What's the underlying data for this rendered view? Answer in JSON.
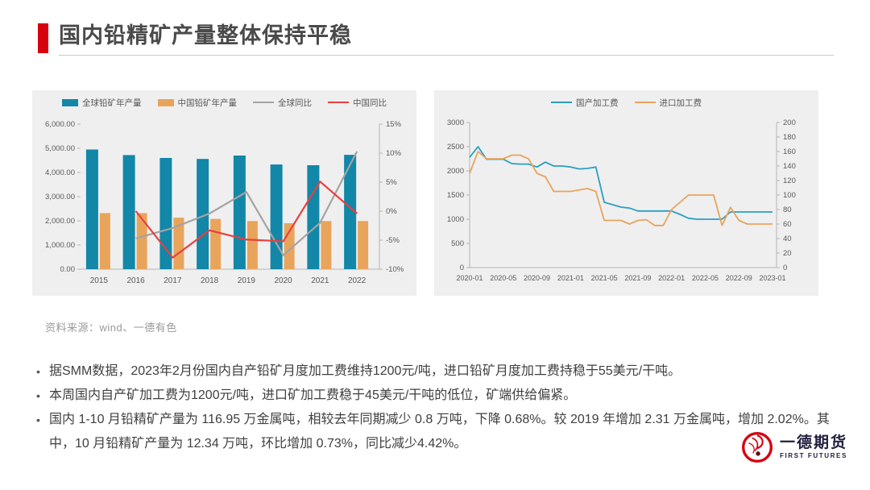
{
  "title": "国内铅精矿产量整体保持平稳",
  "source": "资料来源：wind、一德有色",
  "bullets": [
    "据SMM数据，2023年2月份国内自产铅矿月度加工费维持1200元/吨，进口铅矿月度加工费持稳于55美元/干吨。",
    "本周国内自产矿加工费为1200元/吨，进口矿加工费稳于45美元/干吨的低位，矿端供给偏紧。",
    "国内 1-10 月铅精矿产量为 116.95 万金属吨，相较去年同期减少 0.8 万吨，下降 0.68%。较 2019 年增加 2.31 万金属吨，增加 2.02%。其中，10 月铅精矿产量为 12.34 万吨，环比增加 0.73%，同比减少4.42%。"
  ],
  "logo": {
    "cn": "一德期货",
    "en": "FIRST FUTURES"
  },
  "colors": {
    "accent_red": "#d7000f",
    "panel_bg": "#efeff0",
    "axis_text": "#595959",
    "axis_line": "#b5b5b5"
  },
  "chart_data": [
    {
      "type": "bar",
      "title": "",
      "categories": [
        "2015",
        "2016",
        "2017",
        "2018",
        "2019",
        "2020",
        "2021",
        "2022"
      ],
      "series": [
        {
          "name": "全球铅矿年产量",
          "kind": "bar",
          "axis": "left",
          "color": "#1287a8",
          "values": [
            4950,
            4720,
            4600,
            4560,
            4700,
            4330,
            4300,
            4730
          ]
        },
        {
          "name": "中国铅矿年产量",
          "kind": "bar",
          "axis": "left",
          "color": "#e9a45b",
          "values": [
            2320,
            2320,
            2130,
            2080,
            1990,
            1900,
            1990,
            1990
          ]
        },
        {
          "name": "全球同比",
          "kind": "line",
          "axis": "right",
          "color": "#a3a3a3",
          "values": [
            null,
            -4.7,
            -2.9,
            -0.4,
            3.3,
            -7.6,
            -2.0,
            10.3
          ]
        },
        {
          "name": "中国同比",
          "kind": "line",
          "axis": "right",
          "color": "#e8403d",
          "values": [
            null,
            0.0,
            -8.0,
            -3.3,
            -4.9,
            -5.2,
            5.1,
            -0.4
          ]
        }
      ],
      "left_axis": {
        "min": 0,
        "max": 6000,
        "tick_values": [
          0,
          1000,
          2000,
          3000,
          4000,
          5000,
          6000
        ],
        "tick_labels": [
          "0.00",
          "1,000.00",
          "2,000.00",
          "3,000.00",
          "4,000.00",
          "5,000.00",
          "6,000.00"
        ]
      },
      "right_axis": {
        "min": -10,
        "max": 15,
        "tick_values": [
          -10,
          -5,
          0,
          5,
          10,
          15
        ],
        "tick_labels": [
          "-10%",
          "-5%",
          "0%",
          "5%",
          "10%",
          "15%"
        ]
      },
      "grid": "off",
      "legend_position": "top"
    },
    {
      "type": "line",
      "title": "",
      "x": [
        "2020-01",
        "2020-02",
        "2020-03",
        "2020-04",
        "2020-05",
        "2020-06",
        "2020-07",
        "2020-08",
        "2020-09",
        "2020-10",
        "2020-11",
        "2020-12",
        "2021-01",
        "2021-02",
        "2021-03",
        "2021-04",
        "2021-05",
        "2021-06",
        "2021-07",
        "2021-08",
        "2021-09",
        "2021-10",
        "2021-11",
        "2021-12",
        "2022-01",
        "2022-02",
        "2022-03",
        "2022-04",
        "2022-05",
        "2022-06",
        "2022-07",
        "2022-08",
        "2022-09",
        "2022-10",
        "2022-11",
        "2022-12",
        "2023-01"
      ],
      "x_tick_labels": [
        "2020-01",
        "2020-05",
        "2020-09",
        "2021-01",
        "2021-05",
        "2021-09",
        "2022-01",
        "2022-05",
        "2022-09",
        "2023-01"
      ],
      "x_tick_every": 4,
      "series": [
        {
          "name": "国产加工费",
          "kind": "line",
          "axis": "left",
          "color": "#2b9fc0",
          "values": [
            2280,
            2500,
            2240,
            2240,
            2240,
            2150,
            2140,
            2140,
            2080,
            2180,
            2100,
            2100,
            2080,
            2040,
            2050,
            2080,
            1350,
            1300,
            1250,
            1230,
            1170,
            1170,
            1170,
            1170,
            1170,
            1100,
            1020,
            1000,
            1000,
            1000,
            1000,
            1150,
            1150,
            1150,
            1150,
            1150,
            1150
          ]
        },
        {
          "name": "进口加工费",
          "kind": "line",
          "axis": "right",
          "color": "#e9a45b",
          "values": [
            130,
            160,
            150,
            150,
            150,
            155,
            155,
            150,
            130,
            125,
            105,
            105,
            105,
            107,
            109,
            105,
            65,
            65,
            65,
            60,
            65,
            66,
            58,
            58,
            80,
            90,
            100,
            100,
            100,
            100,
            58,
            83,
            65,
            60,
            60,
            60,
            60
          ]
        }
      ],
      "left_axis": {
        "min": 0,
        "max": 3000,
        "tick_values": [
          0,
          500,
          1000,
          1500,
          2000,
          2500,
          3000
        ],
        "tick_labels": [
          "0",
          "500",
          "1000",
          "1500",
          "2000",
          "2500",
          "3000"
        ]
      },
      "right_axis": {
        "min": 0,
        "max": 200,
        "tick_values": [
          0,
          20,
          40,
          60,
          80,
          100,
          120,
          140,
          160,
          180,
          200
        ],
        "tick_labels": [
          "0",
          "20",
          "40",
          "60",
          "80",
          "100",
          "120",
          "140",
          "160",
          "180",
          "200"
        ]
      },
      "grid": "off",
      "legend_position": "top"
    }
  ]
}
